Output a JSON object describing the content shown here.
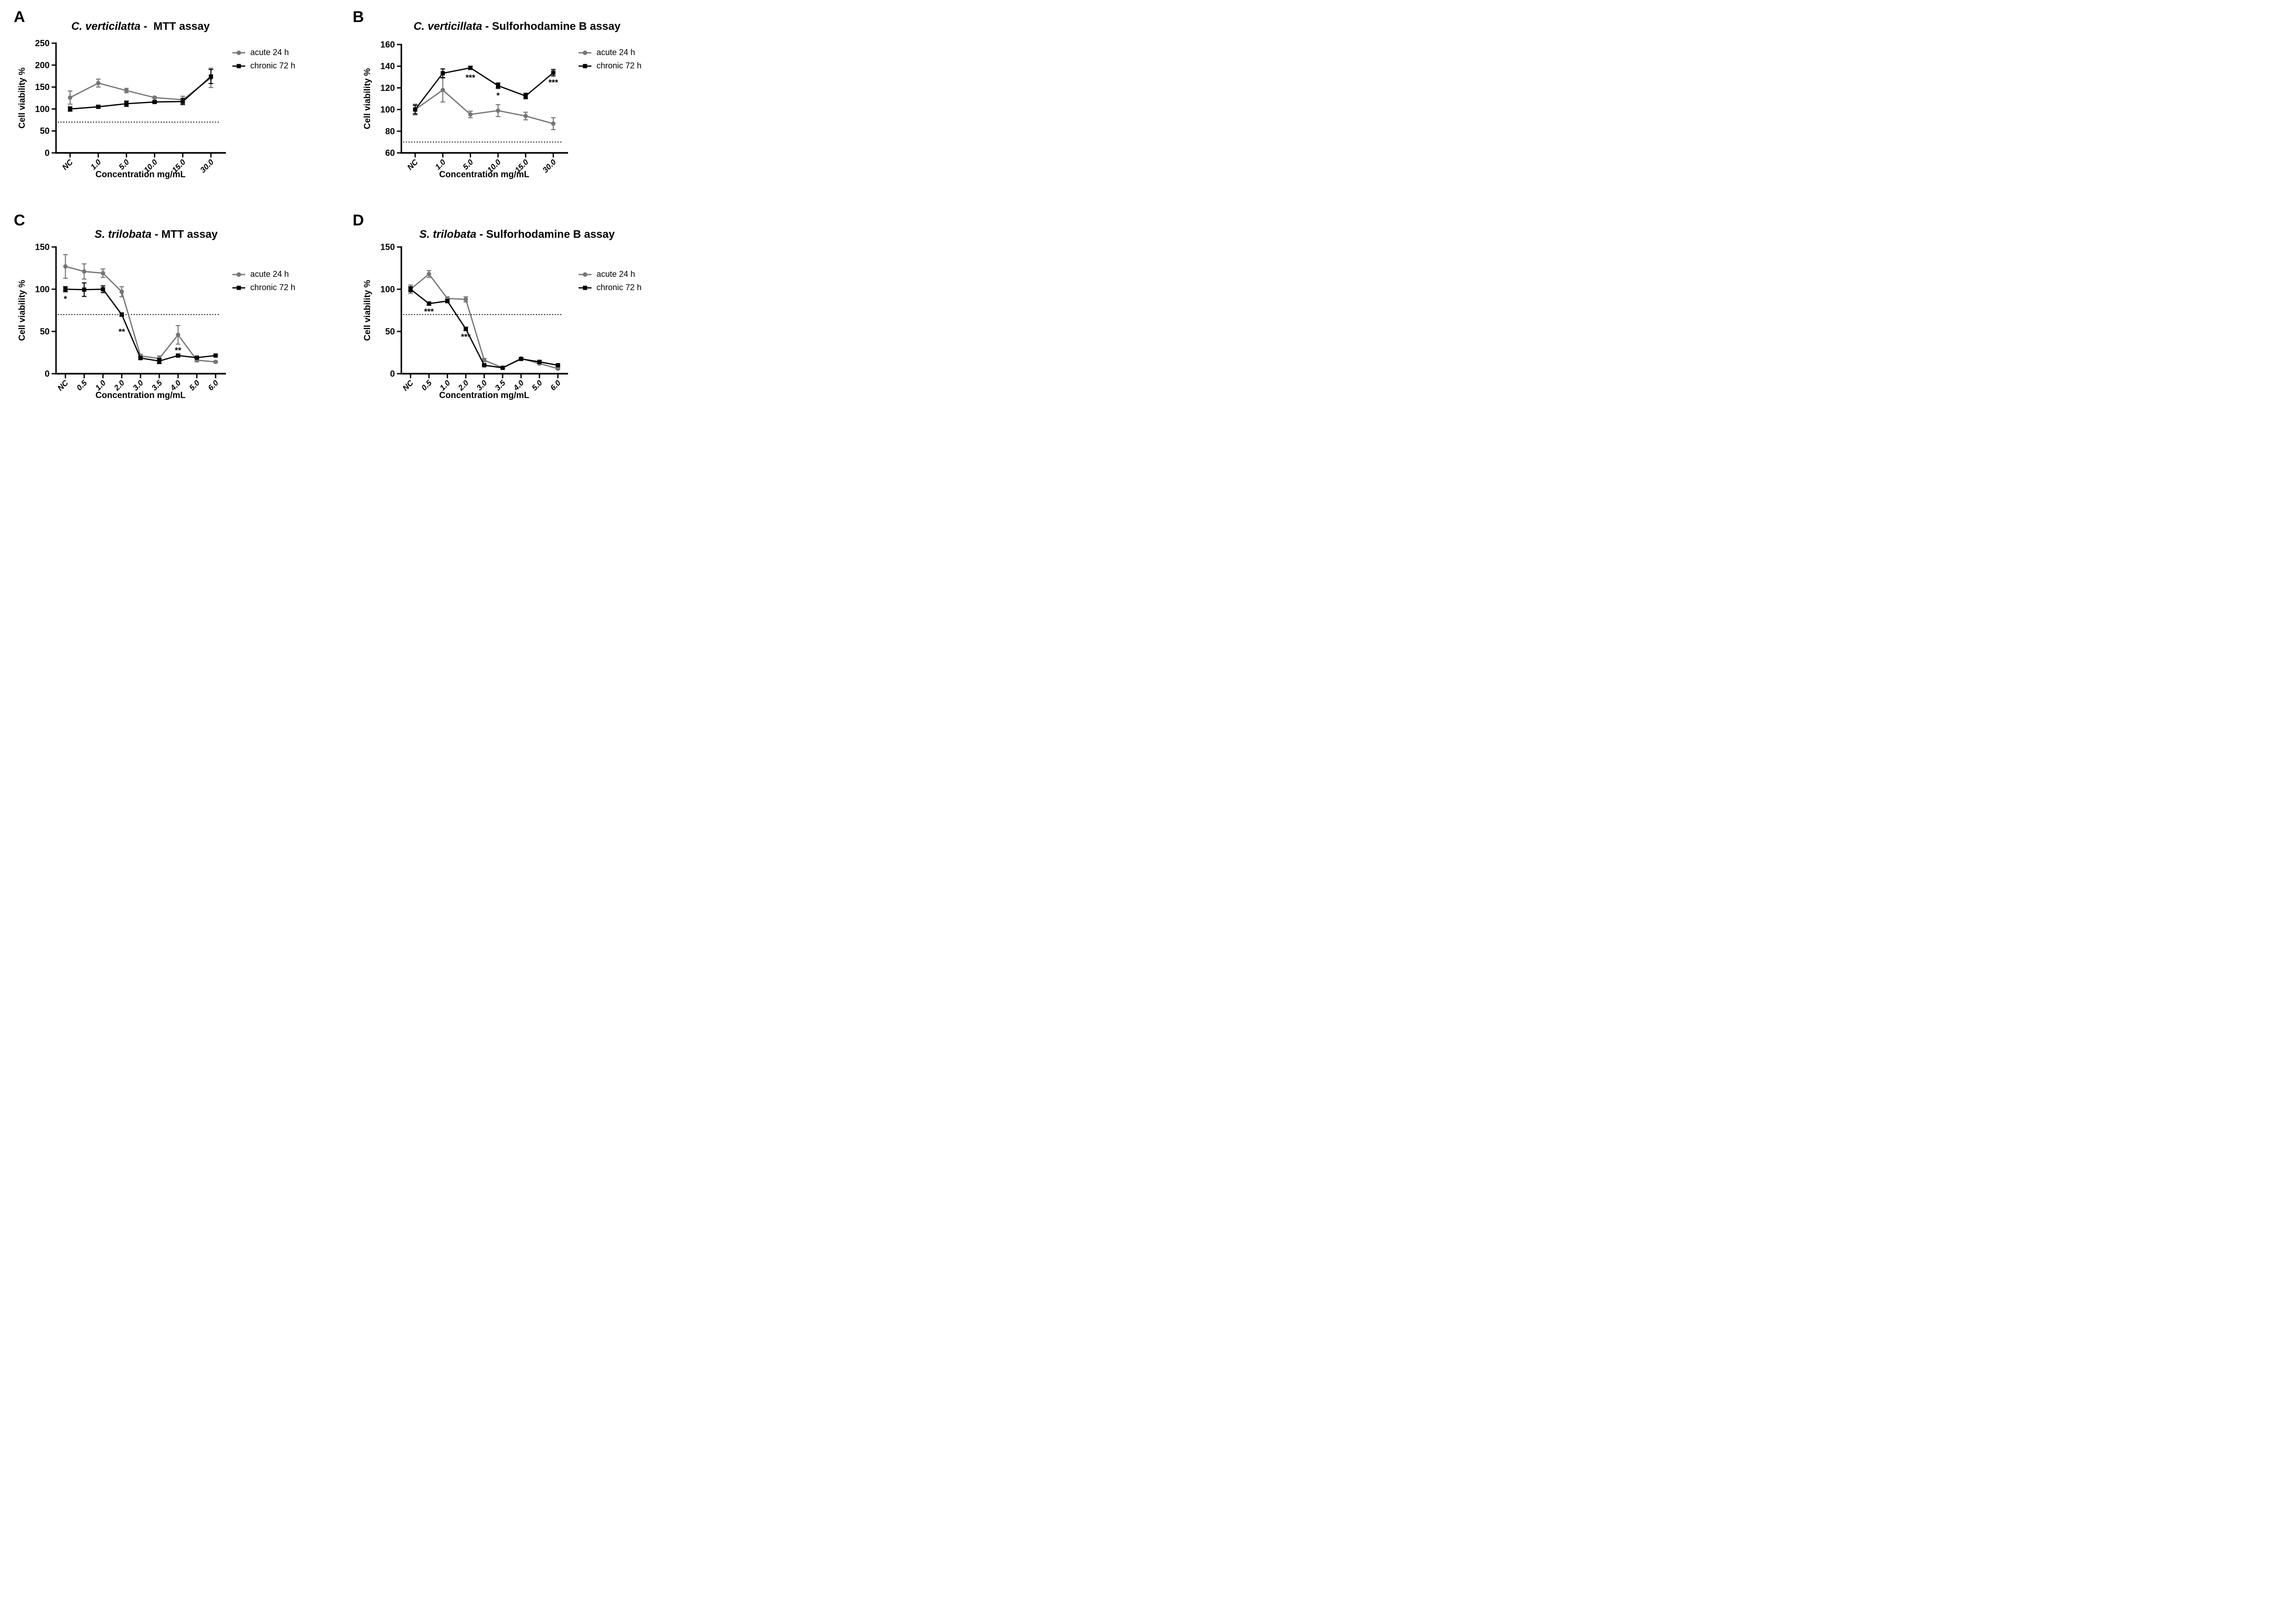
{
  "figure_title": "Cell viability assays of plant extracts (MTT and Sulforhodamine B), four panels",
  "colors": {
    "acute_series": "#757575",
    "chronic_series": "#000000",
    "axis": "#000000",
    "background": "#ffffff"
  },
  "chart_data": [
    {
      "panel_label": "A",
      "type": "line",
      "title_italic": "C. verticilatta",
      "title_rest": " -  MTT assay",
      "xlabel": "Concentration mg/mL",
      "ylabel": "Cell viability  %",
      "categories": [
        "NC",
        "1.0",
        "5.0",
        "10.0",
        "15.0",
        "30.0"
      ],
      "ylim": [
        0,
        250
      ],
      "yticks": [
        0,
        50,
        100,
        150,
        200,
        250
      ],
      "threshold_y": 70,
      "grid": false,
      "legend_position": "right-top",
      "series": [
        {
          "name": "acute 24 h",
          "marker": "circle",
          "color": "#757575",
          "values": [
            126,
            159,
            142,
            126,
            121,
            171
          ],
          "errors": [
            15,
            9,
            5,
            2,
            8,
            22
          ]
        },
        {
          "name": "chronic 72 h",
          "marker": "square",
          "color": "#000000",
          "values": [
            100,
            105,
            112,
            116,
            117,
            174
          ],
          "errors": [
            5,
            3,
            6,
            3,
            7,
            16
          ]
        }
      ],
      "annotations": []
    },
    {
      "panel_label": "B",
      "type": "line",
      "title_italic": "C. verticillata",
      "title_rest": " - Sulforhodamine B assay",
      "xlabel": "Concentration mg/mL",
      "ylabel": "Cell viability  %",
      "categories": [
        "NC",
        "1.0",
        "5.0",
        "10.0",
        "15.0",
        "30.0"
      ],
      "ylim": [
        60,
        160
      ],
      "yticks": [
        60,
        80,
        100,
        120,
        140,
        160
      ],
      "threshold_y": 70,
      "grid": false,
      "legend_position": "right-top",
      "series": [
        {
          "name": "acute 24 h",
          "marker": "circle",
          "color": "#757575",
          "values": [
            100,
            118,
            95.5,
            99,
            94,
            87
          ],
          "errors": [
            5,
            11,
            3,
            5.5,
            3.5,
            5.5
          ]
        },
        {
          "name": "chronic 72 h",
          "marker": "square",
          "color": "#000000",
          "values": [
            100,
            133.5,
            138.5,
            122,
            112.5,
            134
          ],
          "errors": [
            4,
            4,
            1.5,
            2.5,
            2.5,
            3
          ]
        }
      ],
      "annotations": [
        {
          "text": "***",
          "x": "5.0",
          "y": 130.5
        },
        {
          "text": "*",
          "x": "10.0",
          "y": 114
        },
        {
          "text": "***",
          "x": "30.0",
          "y": 126
        }
      ]
    },
    {
      "panel_label": "C",
      "type": "line",
      "title_italic": "S. trilobata",
      "title_rest": " - MTT assay",
      "xlabel": "Concentration mg/mL",
      "ylabel": "Cell viability %",
      "categories": [
        "NC",
        "0.5",
        "1.0",
        "2.0",
        "3.0",
        "3.5",
        "4.0",
        "5.0",
        "6.0"
      ],
      "ylim": [
        0,
        150
      ],
      "yticks": [
        0,
        50,
        100,
        150
      ],
      "threshold_y": 70,
      "grid": false,
      "legend_position": "right-top",
      "series": [
        {
          "name": "acute 24 h",
          "marker": "circle",
          "color": "#757575",
          "values": [
            127,
            121,
            119,
            97,
            21,
            18,
            46,
            16,
            14
          ],
          "errors": [
            14,
            9,
            5,
            6,
            2,
            3,
            11,
            2,
            1
          ]
        },
        {
          "name": "chronic 72 h",
          "marker": "square",
          "color": "#000000",
          "values": [
            100,
            99.5,
            100,
            70,
            18.5,
            15,
            21.5,
            19,
            21.5
          ],
          "errors": [
            3,
            8,
            4,
            2,
            1.5,
            3,
            1.5,
            1,
            1
          ]
        }
      ],
      "annotations": [
        {
          "text": "*",
          "x": "NC",
          "y": 90
        },
        {
          "text": "**",
          "x": "2.0",
          "y": 51
        },
        {
          "text": "**",
          "x": "4.0",
          "y": 29
        }
      ]
    },
    {
      "panel_label": "D",
      "type": "line",
      "title_italic": "S. trilobata",
      "title_rest": " - Sulforhodamine B assay",
      "xlabel": "Concentration mg/mL",
      "ylabel": "Cell viability %",
      "categories": [
        "NC",
        "0.5",
        "1.0",
        "2.0",
        "3.0",
        "3.5",
        "4.0",
        "5.0",
        "6.0"
      ],
      "ylim": [
        0,
        150
      ],
      "yticks": [
        0,
        50,
        100,
        150
      ],
      "threshold_y": 70,
      "grid": false,
      "legend_position": "right-top",
      "series": [
        {
          "name": "acute 24 h",
          "marker": "circle",
          "color": "#757575",
          "values": [
            100,
            118,
            89,
            88,
            16,
            7,
            18,
            12,
            6
          ],
          "errors": [
            5,
            4,
            2,
            3,
            2,
            1,
            1,
            1,
            1
          ]
        },
        {
          "name": "chronic 72 h",
          "marker": "square",
          "color": "#000000",
          "values": [
            100,
            83,
            86,
            53,
            10,
            7,
            17.5,
            14,
            10
          ],
          "errors": [
            3,
            2,
            2,
            2,
            1,
            1,
            1,
            1,
            1
          ]
        }
      ],
      "annotations": [
        {
          "text": "***",
          "x": "0.5",
          "y": 75
        },
        {
          "text": "***",
          "x": "2.0",
          "y": 45
        }
      ]
    }
  ]
}
